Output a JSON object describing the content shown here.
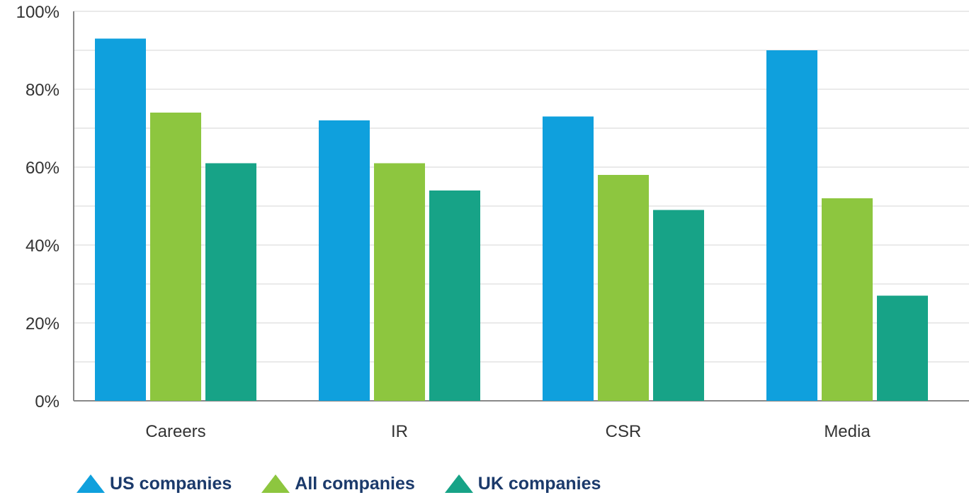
{
  "chart_data": {
    "type": "bar",
    "title": "",
    "xlabel": "",
    "ylabel": "",
    "ylim": [
      0,
      100
    ],
    "y_ticks": [
      "0%",
      "20%",
      "40%",
      "60%",
      "80%",
      "100%"
    ],
    "y_tick_values": [
      0,
      20,
      40,
      60,
      80,
      100
    ],
    "categories": [
      "Careers",
      "IR",
      "CSR",
      "Media"
    ],
    "series": [
      {
        "name": "US companies",
        "color": "#0fa0dd",
        "values": [
          93,
          72,
          73,
          90
        ]
      },
      {
        "name": "All companies",
        "color": "#8dc63f",
        "values": [
          74,
          61,
          58,
          52
        ]
      },
      {
        "name": "UK companies",
        "color": "#17a387",
        "values": [
          61,
          54,
          49,
          27
        ]
      }
    ],
    "grid": true,
    "legend_position": "bottom-left",
    "legend_marker": "triangle"
  },
  "colors": {
    "grid": "#e3e3e3",
    "axis": "#888888",
    "text": "#333333",
    "legend_text": "#1b3a6b"
  }
}
